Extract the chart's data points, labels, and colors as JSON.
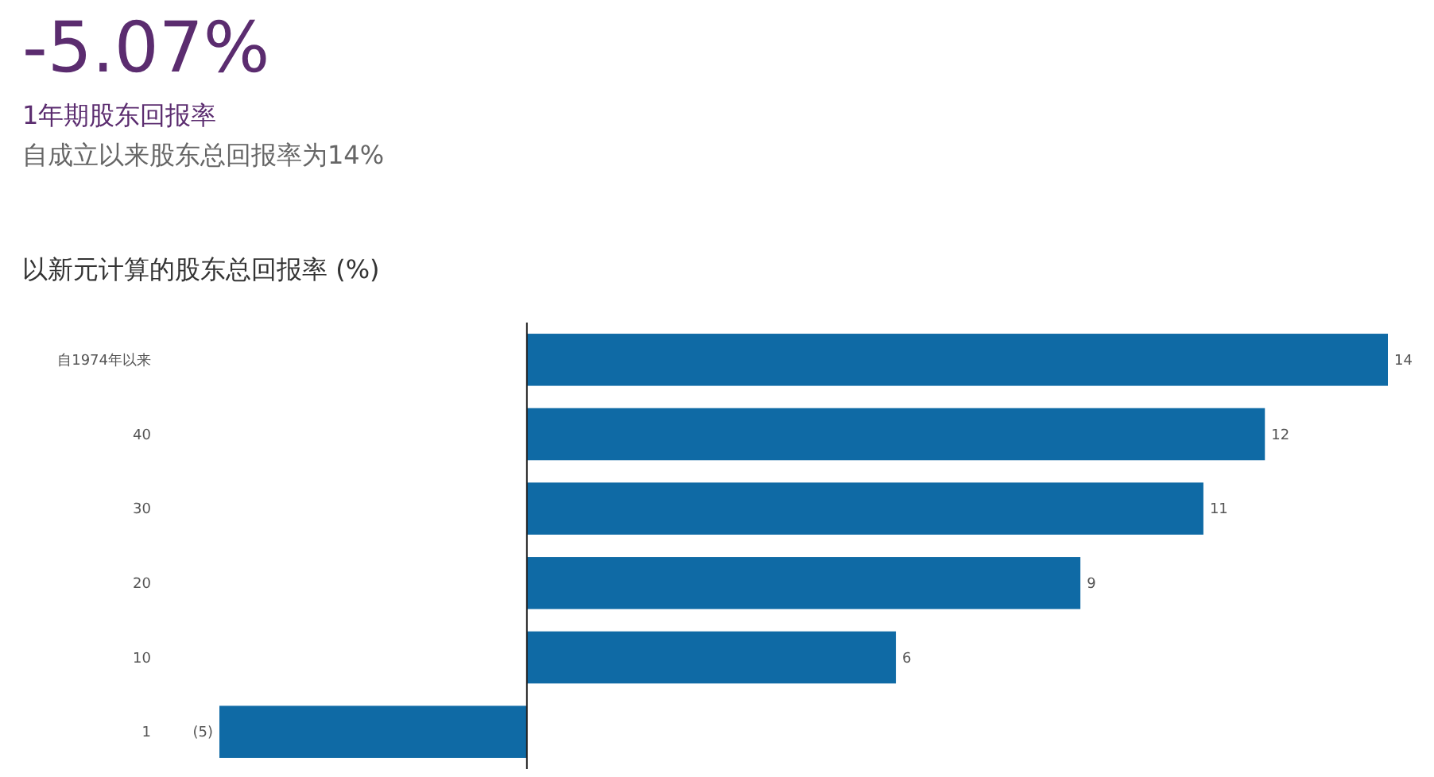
{
  "chart_data": {
    "type": "bar",
    "orientation": "horizontal",
    "title": "以新元计算的股东总回报率 (%)",
    "annotations": [
      "-5.07%",
      "1年期股东回报率",
      "自成立以来股东总回报率为14%"
    ],
    "categories": [
      "自1974年以来",
      "40",
      "30",
      "20",
      "10",
      "1"
    ],
    "values": [
      14,
      12,
      11,
      9,
      6,
      -5
    ],
    "value_labels": [
      "14",
      "12",
      "11",
      "9",
      "6",
      "(5)"
    ],
    "color": "#0f6aa5"
  }
}
